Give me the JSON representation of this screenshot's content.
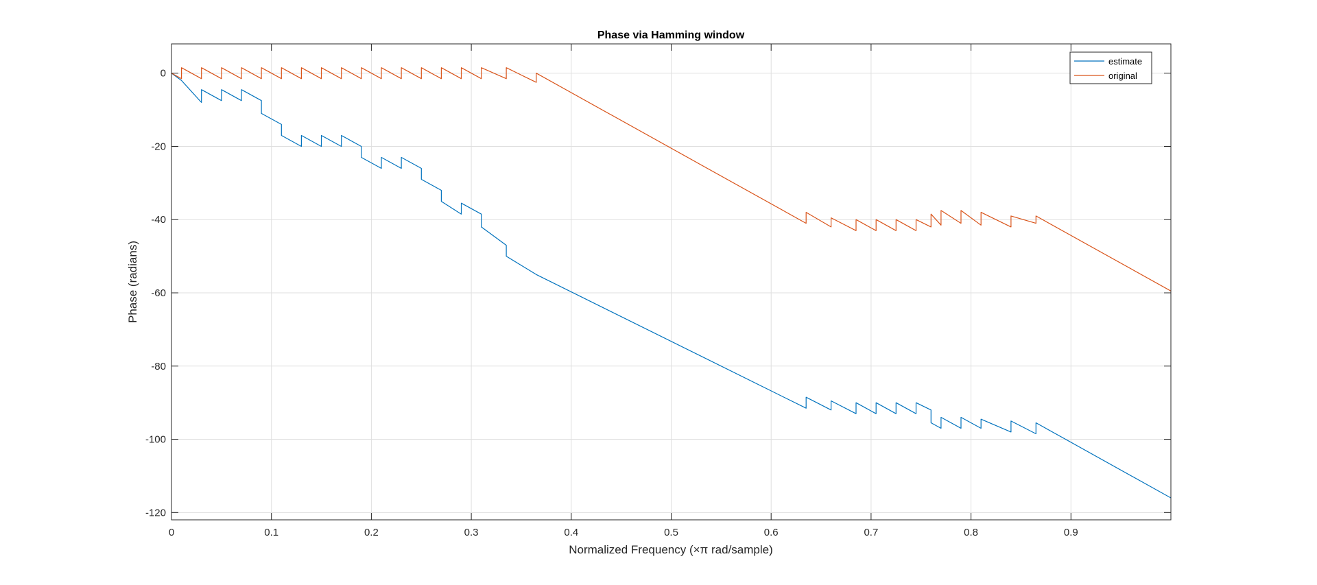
{
  "chart_data": {
    "type": "line",
    "title": "Phase via Hamming window",
    "xlabel": "Normalized Frequency (×π rad/sample)",
    "ylabel": "Phase (radians)",
    "xlim": [
      0,
      1
    ],
    "ylim": [
      -122,
      8
    ],
    "xticks": [
      0,
      0.1,
      0.2,
      0.3,
      0.4,
      0.5,
      0.6,
      0.7,
      0.8,
      0.9
    ],
    "xtick_labels": [
      "0",
      "0.1",
      "0.2",
      "0.3",
      "0.4",
      "0.5",
      "0.6",
      "0.7",
      "0.8",
      "0.9"
    ],
    "yticks": [
      0,
      -20,
      -40,
      -60,
      -80,
      -100,
      -120
    ],
    "ytick_labels": [
      "0",
      "-20",
      "-40",
      "-60",
      "-80",
      "-100",
      "-120"
    ],
    "grid": true,
    "legend_position": "top-right",
    "colors": {
      "estimate": "#0072BD",
      "original": "#D95319"
    },
    "series": [
      {
        "name": "estimate",
        "color": "#0072BD",
        "x": [
          0,
          0.01,
          0.01,
          0.03,
          0.03,
          0.05,
          0.05,
          0.07,
          0.07,
          0.09,
          0.09,
          0.11,
          0.11,
          0.13,
          0.13,
          0.15,
          0.15,
          0.17,
          0.17,
          0.19,
          0.19,
          0.21,
          0.21,
          0.23,
          0.23,
          0.25,
          0.25,
          0.27,
          0.27,
          0.29,
          0.29,
          0.31,
          0.31,
          0.335,
          0.335,
          0.365,
          0.365,
          0.635,
          0.635,
          0.66,
          0.66,
          0.685,
          0.685,
          0.705,
          0.705,
          0.725,
          0.725,
          0.745,
          0.745,
          0.76,
          0.76,
          0.77,
          0.77,
          0.79,
          0.79,
          0.81,
          0.81,
          0.84,
          0.84,
          0.865,
          0.865,
          1.0
        ],
        "y": [
          0,
          -2,
          -2,
          -8,
          -4.5,
          -7.5,
          -4.5,
          -7.5,
          -4.5,
          -7.5,
          -11,
          -14,
          -17,
          -20,
          -17,
          -20,
          -17,
          -20,
          -17,
          -20,
          -23,
          -26,
          -23,
          -26,
          -23,
          -26,
          -29,
          -32,
          -35,
          -38.5,
          -35.5,
          -38.5,
          -42,
          -47,
          -50,
          -55,
          -55,
          -91.5,
          -88.5,
          -92,
          -89.5,
          -93,
          -90,
          -93,
          -90,
          -93,
          -90,
          -93,
          -90,
          -92,
          -95.5,
          -97,
          -94,
          -97,
          -94,
          -97,
          -94.5,
          -98,
          -95,
          -98.5,
          -95.5,
          -116
        ]
      },
      {
        "name": "original",
        "color": "#D95319",
        "x": [
          0,
          0.01,
          0.01,
          0.03,
          0.03,
          0.05,
          0.05,
          0.07,
          0.07,
          0.09,
          0.09,
          0.11,
          0.11,
          0.13,
          0.13,
          0.15,
          0.15,
          0.17,
          0.17,
          0.19,
          0.19,
          0.21,
          0.21,
          0.23,
          0.23,
          0.25,
          0.25,
          0.27,
          0.27,
          0.29,
          0.29,
          0.31,
          0.31,
          0.335,
          0.335,
          0.365,
          0.365,
          0.635,
          0.635,
          0.66,
          0.66,
          0.685,
          0.685,
          0.705,
          0.705,
          0.725,
          0.725,
          0.745,
          0.745,
          0.76,
          0.76,
          0.77,
          0.77,
          0.79,
          0.79,
          0.81,
          0.81,
          0.84,
          0.84,
          0.865,
          0.865,
          1.0
        ],
        "y": [
          0,
          -1.5,
          1.5,
          -1.5,
          1.5,
          -1.5,
          1.5,
          -1.5,
          1.5,
          -1.5,
          1.5,
          -1.5,
          1.5,
          -1.5,
          1.5,
          -1.5,
          1.5,
          -1.5,
          1.5,
          -1.5,
          1.5,
          -1.5,
          1.5,
          -1.5,
          1.5,
          -1.5,
          1.5,
          -1.5,
          1.5,
          -1.5,
          1.5,
          -1.5,
          1.5,
          -1.5,
          1.5,
          -2.5,
          0,
          -41,
          -38,
          -42,
          -39.5,
          -43,
          -40,
          -43,
          -40,
          -43,
          -40,
          -43,
          -40,
          -42,
          -38.5,
          -41.5,
          -37.5,
          -41,
          -37.5,
          -41.5,
          -38,
          -42,
          -39,
          -41,
          -39,
          -59.5
        ]
      }
    ]
  }
}
